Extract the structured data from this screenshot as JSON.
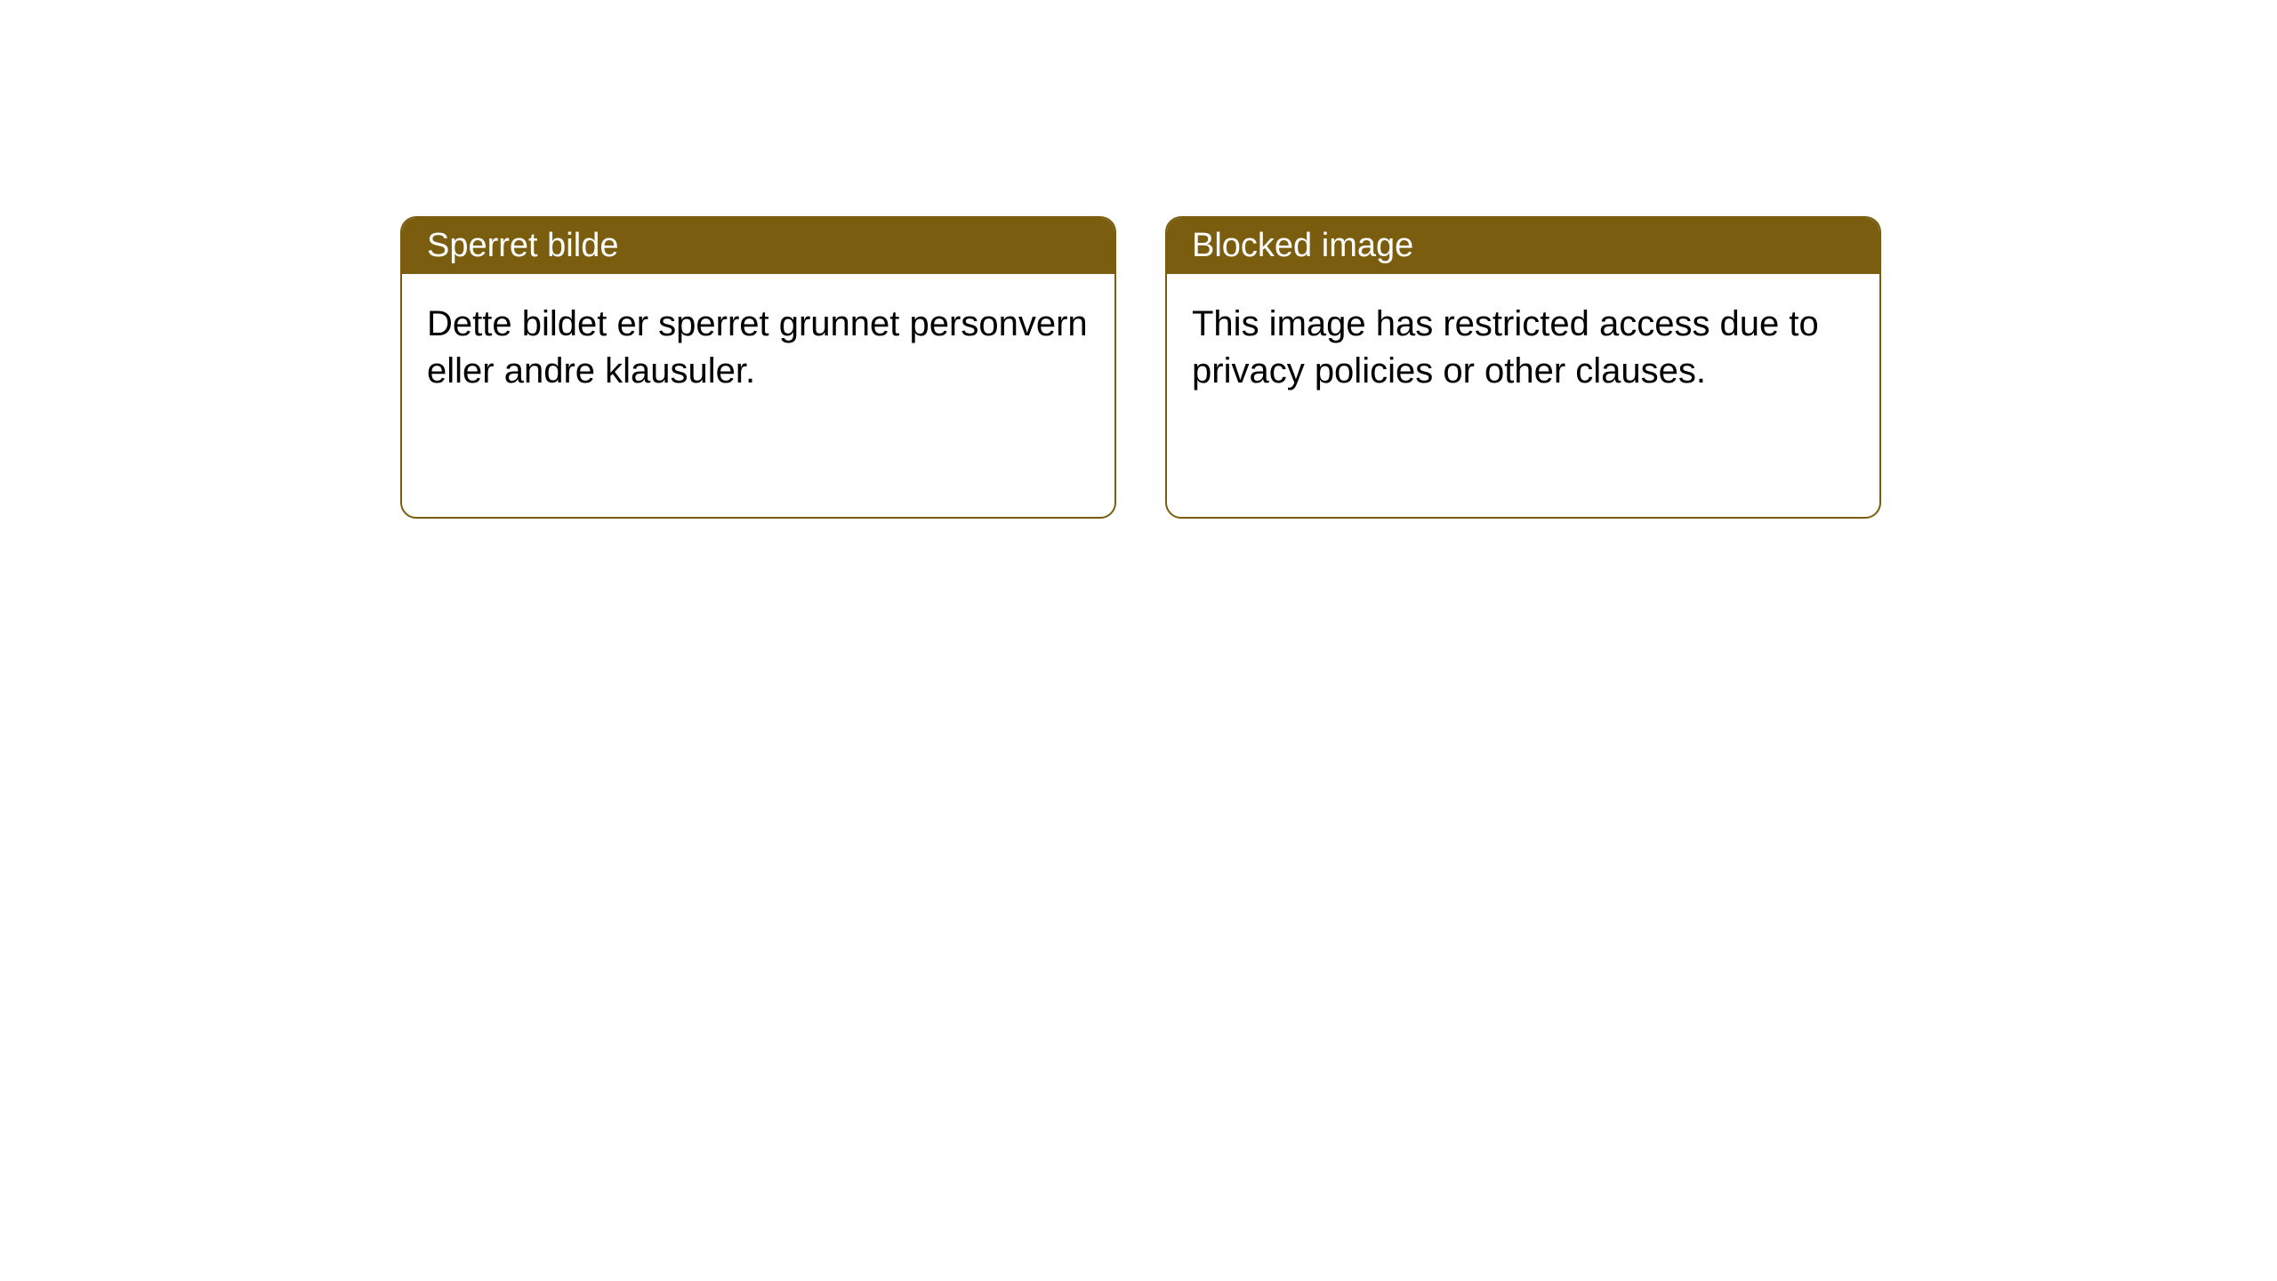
{
  "cards": [
    {
      "title": "Sperret bilde",
      "body": "Dette bildet er sperret grunnet personvern eller andre klausuler."
    },
    {
      "title": "Blocked image",
      "body": "This image has restricted access due to privacy policies or other clauses."
    }
  ],
  "style": {
    "header_bg": "#7a5d0f",
    "header_text_color": "#ffffff",
    "body_text_color": "#000000",
    "card_border_color": "#7a5d0f",
    "card_bg": "#ffffff",
    "page_bg": "#ffffff",
    "card_border_radius": 18,
    "title_fontsize": 38,
    "body_fontsize": 40
  }
}
